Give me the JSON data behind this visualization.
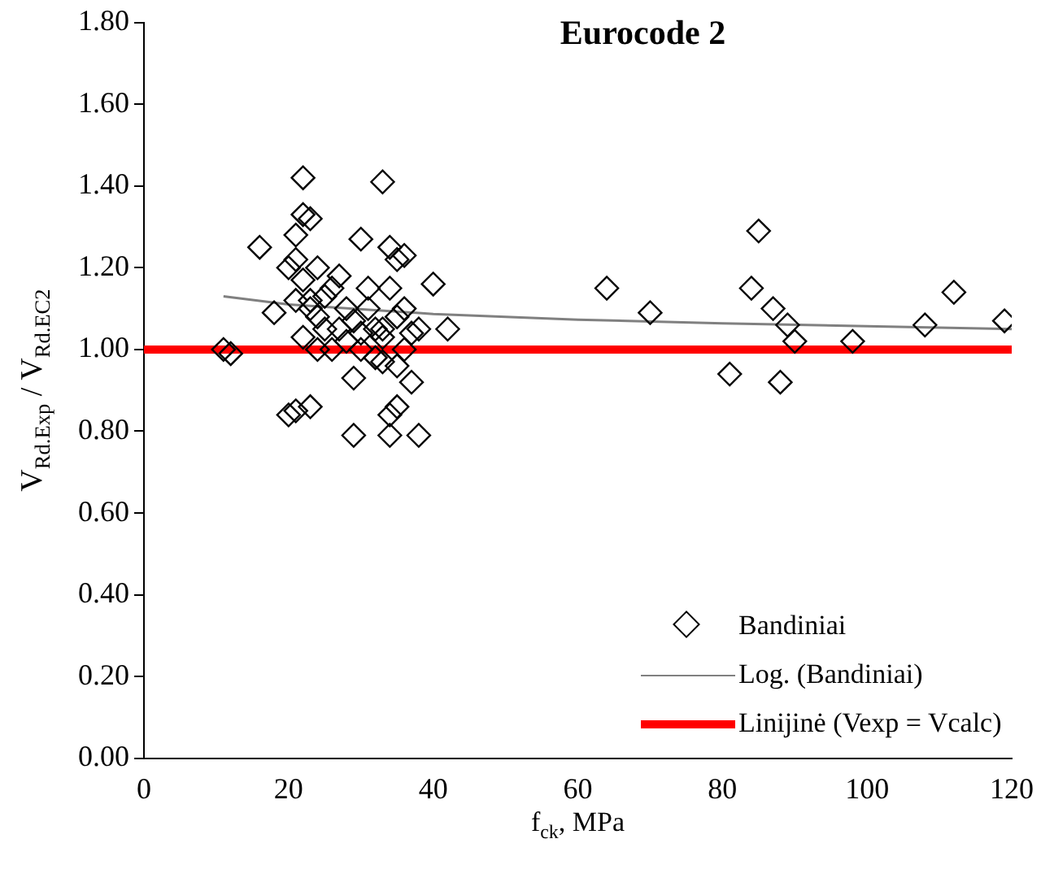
{
  "chart_data": {
    "type": "scatter",
    "title": "Eurocode 2",
    "xlabel": "f$_{ck}$, MPa",
    "ylabel": "V$_{Rd.Exp}$ / V$_{Rd.EC2}$",
    "xlim": [
      0,
      120
    ],
    "xticks": [
      0,
      20,
      40,
      60,
      80,
      100,
      120
    ],
    "ylim": [
      0,
      1.8
    ],
    "yticks": [
      {
        "value": 0,
        "label": "0.00"
      },
      {
        "value": 0.2,
        "label": "0.20"
      },
      {
        "value": 0.4,
        "label": "0.40"
      },
      {
        "value": 0.6,
        "label": "0.60"
      },
      {
        "value": 0.8,
        "label": "0.80"
      },
      {
        "value": 1,
        "label": "1.00"
      },
      {
        "value": 1.2,
        "label": "1.20"
      },
      {
        "value": 1.4,
        "label": "1.40"
      },
      {
        "value": 1.6,
        "label": "1.60"
      },
      {
        "value": 1.8,
        "label": "1.80"
      }
    ],
    "grid": false,
    "legend": "bottom right",
    "series": [
      {
        "name": "Bandiniai",
        "marker": "diamond",
        "color": "#000000",
        "x": [
          11,
          12,
          16,
          18,
          20,
          21,
          22,
          23,
          20,
          21,
          22,
          23,
          21,
          22,
          23,
          24,
          25,
          26,
          27,
          28,
          29,
          29,
          30,
          31,
          32,
          33,
          34,
          35,
          36,
          34,
          35,
          36,
          37,
          38,
          37,
          38,
          34,
          35,
          34,
          33,
          32,
          30,
          28,
          26,
          24,
          22,
          40,
          42,
          27,
          31,
          33,
          35,
          29,
          24,
          23,
          21,
          25,
          30,
          36,
          33,
          64,
          70,
          81,
          84,
          85,
          87,
          88,
          89,
          90,
          98,
          108,
          112,
          119
        ],
        "values": [
          1.0,
          0.99,
          1.25,
          1.09,
          0.84,
          0.85,
          1.42,
          0.86,
          1.2,
          1.28,
          1.33,
          1.32,
          1.22,
          1.17,
          1.12,
          1.2,
          1.05,
          1.15,
          1.18,
          1.1,
          0.93,
          0.79,
          1.27,
          1.1,
          1.05,
          1.41,
          1.25,
          1.22,
          1.23,
          1.15,
          1.08,
          1.1,
          1.04,
          1.05,
          0.92,
          0.79,
          0.84,
          0.86,
          0.79,
          0.97,
          0.98,
          1.0,
          1.02,
          1.0,
          1.0,
          1.03,
          1.16,
          1.05,
          1.05,
          1.15,
          1.03,
          0.96,
          1.07,
          1.08,
          1.1,
          1.12,
          1.13,
          1.04,
          1.0,
          1.05,
          1.15,
          1.09,
          0.94,
          1.15,
          1.29,
          1.1,
          0.92,
          1.06,
          1.02,
          1.02,
          1.06,
          1.14,
          1.07
        ]
      },
      {
        "name": "Log. (Bandiniai)",
        "type": "line",
        "marker": "none",
        "color": "#808080",
        "line_style": "solid",
        "x": [
          11,
          20,
          40,
          60,
          80,
          100,
          120
        ],
        "values": [
          1.13,
          1.11,
          1.087,
          1.073,
          1.064,
          1.057,
          1.05
        ]
      },
      {
        "name": "Linijinė (Vexp = Vcalc)",
        "type": "line",
        "marker": "none",
        "color": "#ff0000",
        "line_style": "solid",
        "x": [
          0,
          120
        ],
        "values": [
          1,
          1
        ]
      }
    ]
  }
}
